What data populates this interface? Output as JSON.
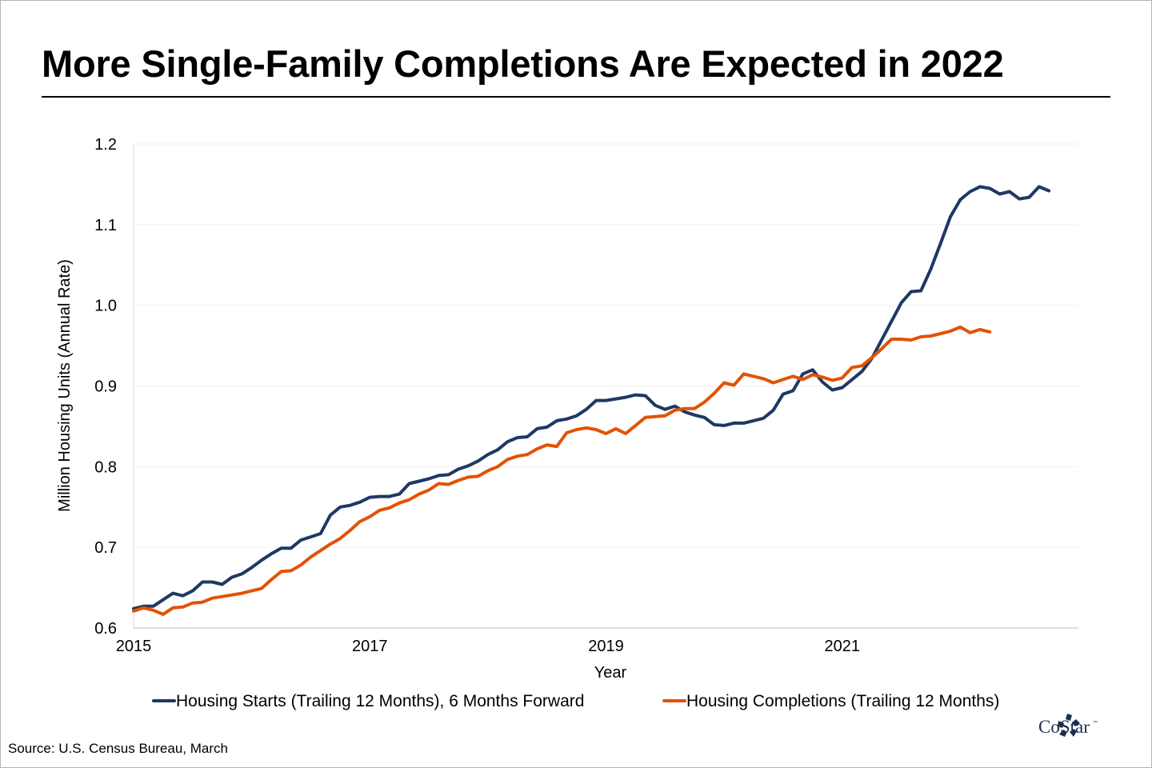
{
  "title": "More Single-Family Completions Are Expected in 2022",
  "source": "Source: U.S. Census Bureau, March",
  "brand": {
    "name": "CoStar",
    "tm": "™",
    "icon": "costar-star-logo",
    "color": "#1f2f4f"
  },
  "chart_data": {
    "type": "line",
    "title": "More Single-Family Completions Are Expected in 2022",
    "xlabel": "Year",
    "ylabel": "Million Housing Units (Annual Rate)",
    "xlim": [
      2015.0,
      2023.0
    ],
    "ylim": [
      0.6,
      1.2
    ],
    "xticks": [
      2015,
      2017,
      2019,
      2021
    ],
    "xtick_labels": [
      "2015",
      "2017",
      "2019",
      "2021"
    ],
    "yticks": [
      0.6,
      0.7,
      0.8,
      0.9,
      1.0,
      1.1,
      1.2
    ],
    "ytick_labels": [
      "0.6",
      "0.7",
      "0.8",
      "0.9",
      "1.0",
      "1.1",
      "1.2"
    ],
    "grid": "horizontal",
    "legend": "bottom",
    "series": [
      {
        "name": "Housing Starts (Trailing 12 Months), 6 Months Forward",
        "color": "#1f3864",
        "start": 2015.0,
        "step_months": 1,
        "values": [
          0.624,
          0.627,
          0.627,
          0.635,
          0.643,
          0.64,
          0.646,
          0.657,
          0.657,
          0.654,
          0.663,
          0.667,
          0.675,
          0.684,
          0.692,
          0.699,
          0.699,
          0.709,
          0.713,
          0.717,
          0.74,
          0.75,
          0.752,
          0.756,
          0.762,
          0.763,
          0.763,
          0.766,
          0.779,
          0.782,
          0.785,
          0.789,
          0.79,
          0.797,
          0.801,
          0.807,
          0.815,
          0.821,
          0.831,
          0.836,
          0.837,
          0.847,
          0.849,
          0.857,
          0.859,
          0.863,
          0.871,
          0.882,
          0.882,
          0.884,
          0.886,
          0.889,
          0.888,
          0.876,
          0.871,
          0.875,
          0.868,
          0.864,
          0.861,
          0.852,
          0.851,
          0.854,
          0.854,
          0.857,
          0.86,
          0.87,
          0.89,
          0.894,
          0.915,
          0.92,
          0.905,
          0.895,
          0.898,
          0.908,
          0.918,
          0.934,
          0.957,
          0.98,
          1.003,
          1.017,
          1.018,
          1.045,
          1.077,
          1.11,
          1.131,
          1.141,
          1.147,
          1.145,
          1.138,
          1.141,
          1.132,
          1.134,
          1.147,
          1.142
        ]
      },
      {
        "name": "Housing Completions (Trailing 12 Months)",
        "color": "#e35205",
        "start": 2015.0,
        "step_months": 1,
        "values": [
          0.621,
          0.625,
          0.622,
          0.617,
          0.625,
          0.626,
          0.631,
          0.632,
          0.637,
          0.639,
          0.641,
          0.643,
          0.646,
          0.649,
          0.66,
          0.67,
          0.671,
          0.678,
          0.688,
          0.696,
          0.704,
          0.711,
          0.721,
          0.732,
          0.738,
          0.746,
          0.749,
          0.755,
          0.759,
          0.766,
          0.771,
          0.779,
          0.778,
          0.783,
          0.787,
          0.788,
          0.795,
          0.8,
          0.809,
          0.813,
          0.815,
          0.822,
          0.827,
          0.825,
          0.842,
          0.846,
          0.848,
          0.846,
          0.841,
          0.847,
          0.841,
          0.851,
          0.861,
          0.862,
          0.863,
          0.87,
          0.872,
          0.872,
          0.88,
          0.891,
          0.904,
          0.901,
          0.915,
          0.912,
          0.909,
          0.904,
          0.908,
          0.912,
          0.908,
          0.914,
          0.911,
          0.907,
          0.91,
          0.923,
          0.925,
          0.935,
          0.946,
          0.958,
          0.958,
          0.957,
          0.961,
          0.962,
          0.965,
          0.968,
          0.973,
          0.966,
          0.97,
          0.967
        ]
      }
    ]
  }
}
